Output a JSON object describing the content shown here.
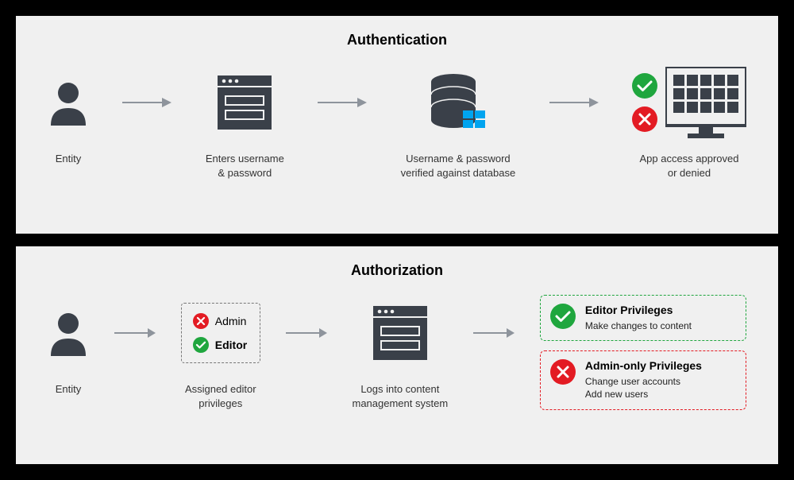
{
  "colors": {
    "dark": "#3a4049",
    "red": "#e31b23",
    "green": "#1fa63e",
    "arrow": "#8e949c",
    "winblue": "#00a4ef",
    "border_dashed": "#777777"
  },
  "authentication": {
    "title": "Authentication",
    "steps": {
      "entity": {
        "label": "Entity"
      },
      "enters": {
        "label": "Enters username\n& password"
      },
      "verify": {
        "label": "Username & password\nverified against database"
      },
      "result": {
        "label": "App access approved\nor denied"
      }
    }
  },
  "authorization": {
    "title": "Authorization",
    "steps": {
      "entity": {
        "label": "Entity"
      },
      "assigned": {
        "label": "Assigned editor\nprivileges"
      },
      "login": {
        "label": "Logs into content\nmanagement system"
      }
    },
    "roles": {
      "admin": "Admin",
      "editor": "Editor"
    },
    "privileges": {
      "editor": {
        "title": "Editor Privileges",
        "desc": "Make changes to content"
      },
      "admin": {
        "title": "Admin-only Privileges",
        "desc1": "Change user accounts",
        "desc2": "Add new users"
      }
    }
  }
}
